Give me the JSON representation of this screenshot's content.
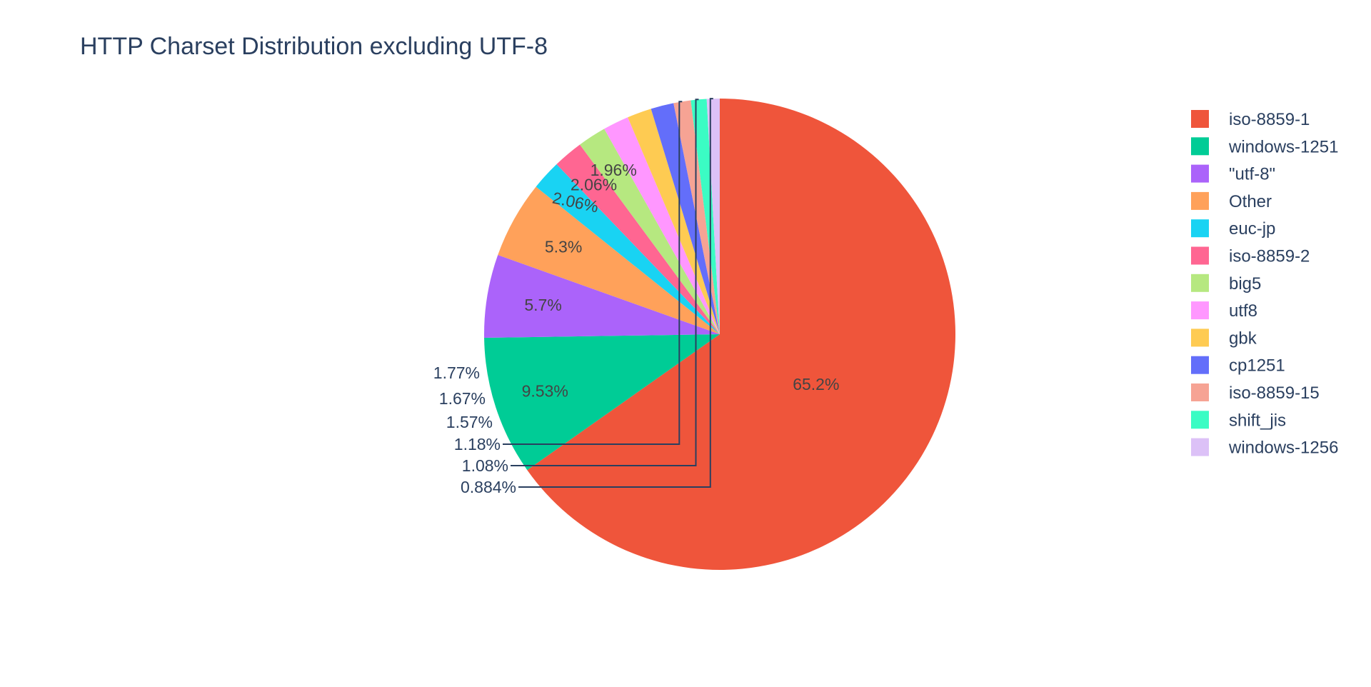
{
  "chart_data": {
    "type": "pie",
    "title": "HTTP Charset Distribution excluding UTF-8",
    "legend_position": "right",
    "direction": "clockwise",
    "start_angle": "top",
    "slices": [
      {
        "label": "iso-8859-1",
        "value": 65.2,
        "text": "65.2%",
        "color": "#EF553B",
        "text_placement": "inside",
        "text_color": "#444444"
      },
      {
        "label": "windows-1251",
        "value": 9.53,
        "text": "9.53%",
        "color": "#00CC96",
        "text_placement": "inside",
        "text_color": "#444444"
      },
      {
        "label": "\"utf-8\"",
        "value": 5.7,
        "text": "5.7%",
        "color": "#AB63FA",
        "text_placement": "inside",
        "text_color": "#444444"
      },
      {
        "label": "Other",
        "value": 5.3,
        "text": "5.3%",
        "color": "#FFA15A",
        "text_placement": "inside",
        "text_color": "#444444"
      },
      {
        "label": "euc-jp",
        "value": 2.06,
        "text": "2.06%",
        "color": "#19D3F3",
        "text_placement": "inside-rotated",
        "text_color": "#444444"
      },
      {
        "label": "iso-8859-2",
        "value": 2.06,
        "text": "2.06%",
        "color": "#FF6692",
        "text_placement": "inside",
        "text_color": "#444444"
      },
      {
        "label": "big5",
        "value": 1.96,
        "text": "1.96%",
        "color": "#B6E880",
        "text_placement": "inside",
        "text_color": "#444444"
      },
      {
        "label": "utf8",
        "value": 1.77,
        "text": "1.77%",
        "color": "#FF97FF",
        "text_placement": "outside",
        "text_color": "#2a3f5f"
      },
      {
        "label": "gbk",
        "value": 1.67,
        "text": "1.67%",
        "color": "#FECB52",
        "text_placement": "outside",
        "text_color": "#2a3f5f"
      },
      {
        "label": "cp1251",
        "value": 1.57,
        "text": "1.57%",
        "color": "#636EFA",
        "text_placement": "outside",
        "text_color": "#2a3f5f"
      },
      {
        "label": "iso-8859-15",
        "value": 1.18,
        "text": "1.18%",
        "color": "#F6A394",
        "text_placement": "outside-leader",
        "text_color": "#2a3f5f"
      },
      {
        "label": "shift_jis",
        "value": 1.08,
        "text": "1.08%",
        "color": "#3BFCC4",
        "text_placement": "outside-leader",
        "text_color": "#2a3f5f"
      },
      {
        "label": "windows-1256",
        "value": 0.884,
        "text": "0.884%",
        "color": "#DCC1F7",
        "text_placement": "outside-leader",
        "text_color": "#2a3f5f"
      }
    ]
  }
}
